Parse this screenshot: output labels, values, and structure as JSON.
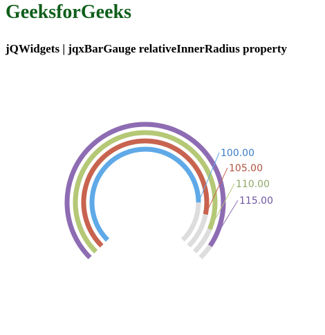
{
  "page": {
    "title": "GeeksforGeeks",
    "subtitle": "jQWidgets | jqxBarGauge relativeInnerRadius property"
  },
  "colors": {
    "title": "#0f5e1a",
    "track": "#dddddd"
  },
  "chart_data": {
    "type": "bar",
    "gauge": "jqxBarGauge",
    "min": 0,
    "max": 120,
    "start_angle_deg": 225,
    "end_angle_deg": -45,
    "values": [
      100,
      105,
      110,
      115
    ],
    "labels": [
      "100.00",
      "105.00",
      "110.00",
      "115.00"
    ],
    "colors": [
      "#5fa9e8",
      "#c8634f",
      "#b5c876",
      "#8e6cb3"
    ],
    "label_colors": [
      "#3b7dc4",
      "#b0523f",
      "#8fa668",
      "#6e56a0"
    ]
  }
}
